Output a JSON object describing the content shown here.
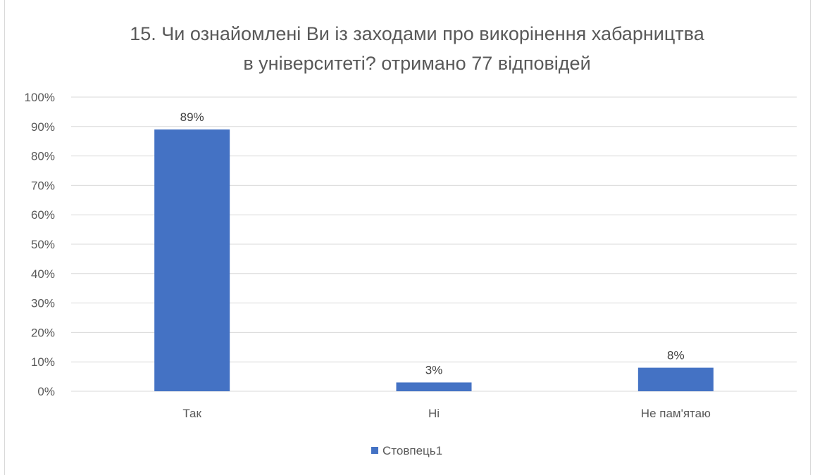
{
  "chart_data": {
    "type": "bar",
    "title_lines": [
      "15. Чи ознайомлені Ви із заходами про викорінення хабарництва",
      "в університеті? отримано 77 відповідей"
    ],
    "categories": [
      "Так",
      "Ні",
      "Не пам'ятаю"
    ],
    "series": [
      {
        "name": "Стовпець1",
        "values": [
          89,
          3,
          8
        ],
        "data_labels": [
          "89%",
          "3%",
          "8%"
        ]
      }
    ],
    "y_ticks": [
      "0%",
      "10%",
      "20%",
      "30%",
      "40%",
      "50%",
      "60%",
      "70%",
      "80%",
      "90%",
      "100%"
    ],
    "ylim": [
      0,
      100
    ],
    "xlabel": "",
    "ylabel": "",
    "grid": true,
    "legend_position": "bottom",
    "colors": {
      "bar": "#4472c4",
      "grid": "#d9d9d9",
      "text": "#595959"
    }
  }
}
